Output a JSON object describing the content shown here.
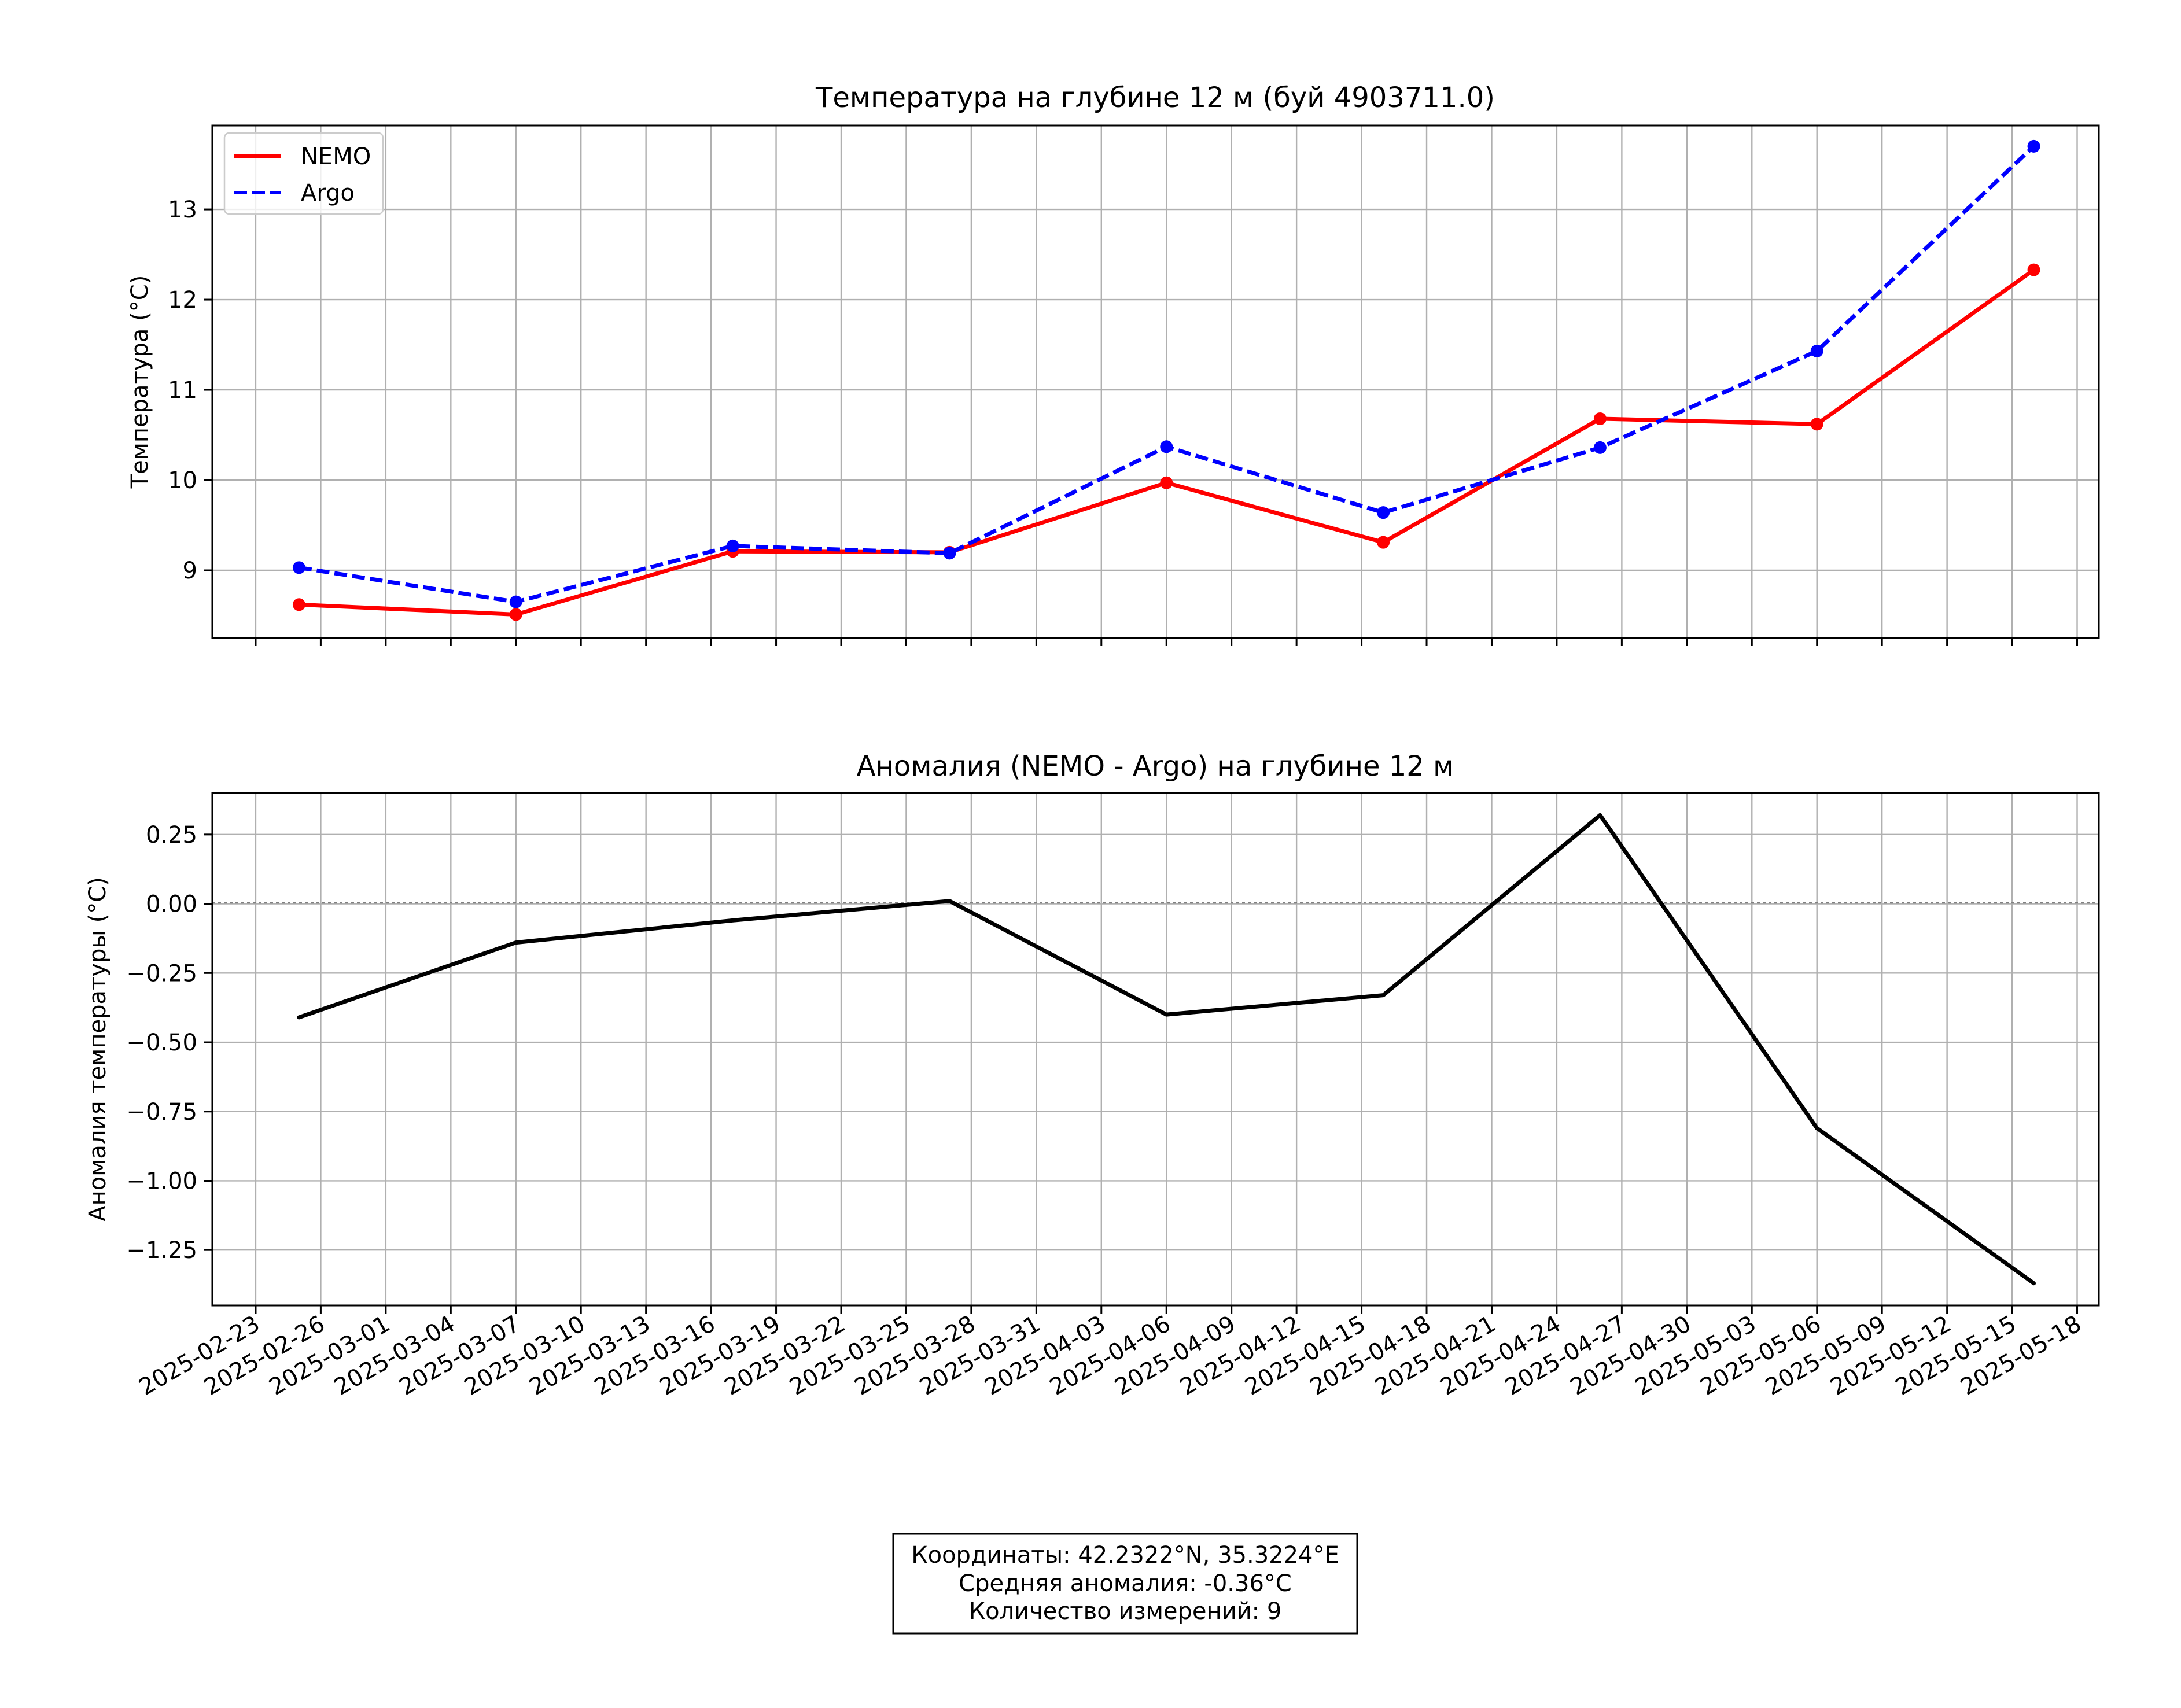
{
  "chart_data": [
    {
      "type": "line",
      "title": "Температура на глубине 12 м (буй 4903711.0)",
      "xlabel": "",
      "ylabel": "Температура (°C)",
      "x": [
        "2025-02-25",
        "2025-03-07",
        "2025-03-17",
        "2025-03-27",
        "2025-04-06",
        "2025-04-16",
        "2025-04-26",
        "2025-05-06",
        "2025-05-16"
      ],
      "x_range": [
        "2025-02-21",
        "2025-05-19"
      ],
      "xticks": [
        "2025-02-23",
        "2025-02-26",
        "2025-03-01",
        "2025-03-04",
        "2025-03-07",
        "2025-03-10",
        "2025-03-13",
        "2025-03-16",
        "2025-03-19",
        "2025-03-22",
        "2025-03-25",
        "2025-03-28",
        "2025-03-31",
        "2025-04-03",
        "2025-04-06",
        "2025-04-09",
        "2025-04-12",
        "2025-04-15",
        "2025-04-18",
        "2025-04-21",
        "2025-04-24",
        "2025-04-27",
        "2025-04-30",
        "2025-05-03",
        "2025-05-06",
        "2025-05-09",
        "2025-05-12",
        "2025-05-15",
        "2025-05-18"
      ],
      "ylim": [
        8.25,
        13.93
      ],
      "yticks": [
        9,
        10,
        11,
        12,
        13
      ],
      "grid": true,
      "legend": "upper left",
      "series": [
        {
          "name": "NEMO",
          "color": "#ff0000",
          "style": "solid",
          "values": [
            8.62,
            8.51,
            9.21,
            9.2,
            9.97,
            9.31,
            10.68,
            10.62,
            12.33
          ]
        },
        {
          "name": "Argo",
          "color": "#0000ff",
          "style": "dashed",
          "values": [
            9.03,
            8.65,
            9.27,
            9.19,
            10.37,
            9.64,
            10.36,
            11.43,
            13.7
          ]
        }
      ]
    },
    {
      "type": "line",
      "title": "Аномалия (NEMO - Argo) на глубине 12 м",
      "xlabel": "",
      "ylabel": "Аномалия температуры (°C)",
      "x": [
        "2025-02-25",
        "2025-03-07",
        "2025-03-17",
        "2025-03-27",
        "2025-04-06",
        "2025-04-16",
        "2025-04-26",
        "2025-05-06",
        "2025-05-16"
      ],
      "x_range": [
        "2025-02-21",
        "2025-05-19"
      ],
      "ylim": [
        -1.45,
        0.4
      ],
      "yticks": [
        "0.25",
        "0.00",
        "−0.25",
        "−0.50",
        "−0.75",
        "−1.00",
        "−1.25"
      ],
      "ytick_values": [
        0.25,
        0.0,
        -0.25,
        -0.5,
        -0.75,
        -1.0,
        -1.25
      ],
      "zero_line": true,
      "grid": true,
      "series": [
        {
          "color": "#000000",
          "values": [
            -0.41,
            -0.14,
            -0.06,
            0.01,
            -0.4,
            -0.33,
            0.32,
            -0.81,
            -1.37
          ]
        }
      ]
    }
  ],
  "info_box": {
    "line1": "Координаты: 42.2322°N, 35.3224°E",
    "line2": "Средняя аномалия: -0.36°C",
    "line3": "Количество измерений: 9"
  }
}
